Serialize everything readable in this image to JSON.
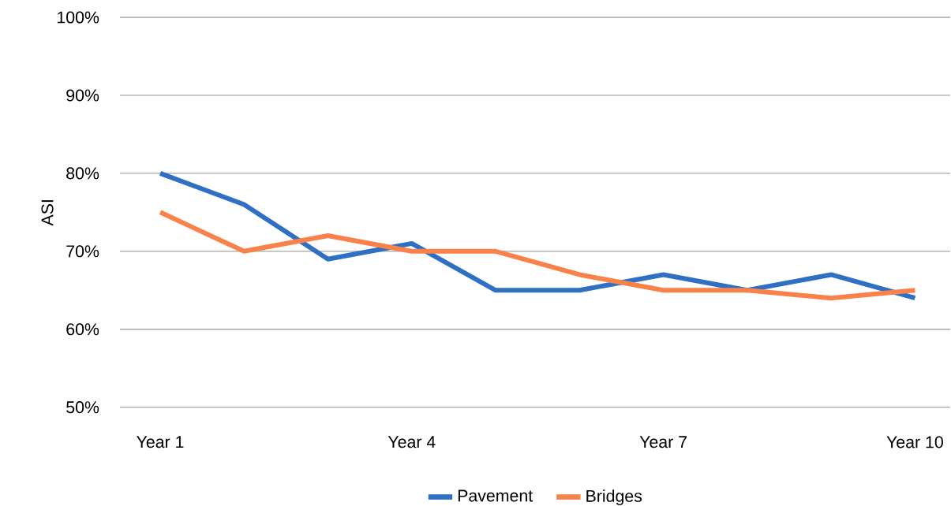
{
  "chart_data": {
    "type": "line",
    "categories": [
      "Year 1",
      null,
      null,
      "Year 4",
      null,
      null,
      "Year 7",
      null,
      null,
      "Year 10"
    ],
    "series": [
      {
        "name": "Pavement",
        "color": "#3070c4",
        "values": [
          80,
          76,
          69,
          71,
          65,
          65,
          67,
          65,
          67,
          64
        ]
      },
      {
        "name": "Bridges",
        "color": "#f9814a",
        "values": [
          75,
          70,
          72,
          70,
          70,
          67,
          65,
          65,
          64,
          65
        ]
      }
    ],
    "ylabel": "ASI",
    "ylim": [
      50,
      100
    ],
    "yticks": [
      {
        "value": 50,
        "label": "50%"
      },
      {
        "value": 60,
        "label": "60%"
      },
      {
        "value": 70,
        "label": "70%"
      },
      {
        "value": 80,
        "label": "80%"
      },
      {
        "value": 90,
        "label": "90%"
      },
      {
        "value": 100,
        "label": "100%"
      }
    ],
    "grid": "y",
    "legend": "bottom",
    "marker": "none",
    "line_style": "solid"
  }
}
